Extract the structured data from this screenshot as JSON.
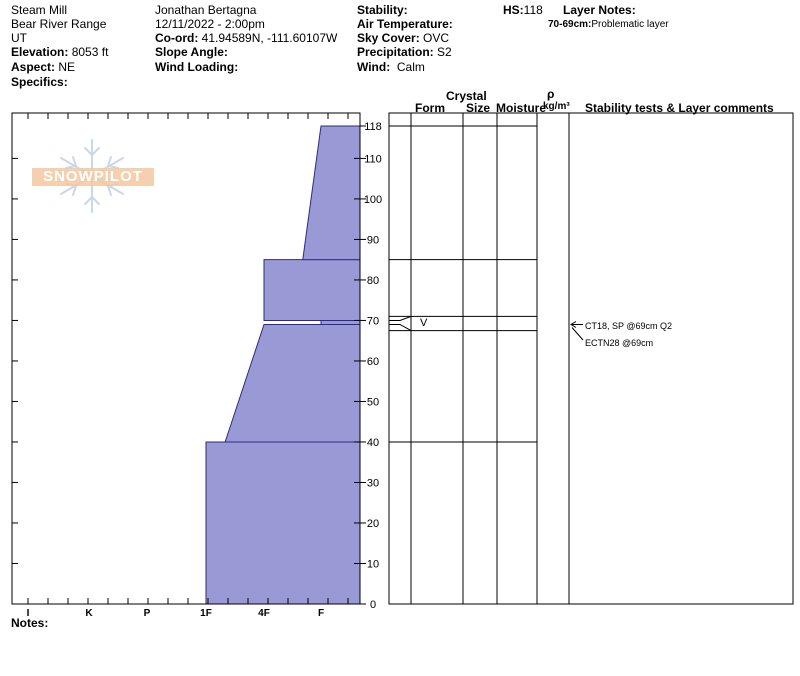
{
  "header": {
    "location": "Steam Mill",
    "range": "Bear River Range",
    "state": "UT",
    "elevation_label": "Elevation:",
    "elevation_value": "8053 ft",
    "aspect_label": "Aspect:",
    "aspect_value": "NE",
    "specifics_label": "Specifics:",
    "observer": "Jonathan Bertagna",
    "datetime": "12/11/2022 - 2:00pm",
    "coord_label": "Co-ord:",
    "coord_value": "41.94589N, -111.60107W",
    "slope_label": "Slope Angle:",
    "wind_loading_label": "Wind Loading:",
    "stability_label": "Stability:",
    "air_temp_label": "Air Temperature:",
    "sky_label": "Sky Cover:",
    "sky_value": "OVC",
    "precip_label": "Precipitation:",
    "precip_value": "S2",
    "wind_label": "Wind:",
    "wind_value": "Calm",
    "hs_label": "HS:",
    "hs_value": "118",
    "layer_notes_label": "Layer Notes:",
    "layer_note_range": "70-69cm:",
    "layer_note_text": "Problematic layer"
  },
  "logo_text": "SNOWPILOT",
  "notes_label": "Notes:",
  "columns": {
    "form": "Form",
    "crystal": "Crystal",
    "size": "Size",
    "moisture": "Moisture",
    "rho": "ρ",
    "density_unit": "kg/m³",
    "comments": "Stability tests & Layer comments"
  },
  "crystal_form_symbol": "V",
  "stability_tests": [
    "CT18, SP @69cm Q2",
    "ECTN28 @69cm"
  ],
  "colors": {
    "hardness_fill": "#9999d6",
    "hardness_stroke": "#2a2a8a"
  },
  "chart_data": {
    "type": "area",
    "x_axis": {
      "categories": [
        "I",
        "K",
        "P",
        "1F",
        "4F",
        "F"
      ]
    },
    "y_axis": {
      "ticks": [
        0,
        10,
        20,
        30,
        40,
        50,
        60,
        70,
        80,
        90,
        100,
        110,
        118
      ],
      "ylim": [
        0,
        120
      ]
    },
    "hardness_profile": [
      {
        "bottom": 0,
        "top": 40,
        "hardness_bottom": 3,
        "hardness_top": 3
      },
      {
        "bottom": 40,
        "top": 69,
        "hardness_bottom": 3.33,
        "hardness_top": 4
      },
      {
        "bottom": 69,
        "top": 70,
        "hardness_bottom": 5,
        "hardness_top": 5
      },
      {
        "bottom": 70,
        "top": 85,
        "hardness_bottom": 4,
        "hardness_top": 4
      },
      {
        "bottom": 85,
        "top": 118,
        "hardness_bottom": 4.68,
        "hardness_top": 5
      }
    ],
    "layer_boundaries": [
      0,
      40,
      67.5,
      71,
      85,
      118
    ],
    "weak_layer": {
      "from": 70,
      "to": 69
    }
  }
}
